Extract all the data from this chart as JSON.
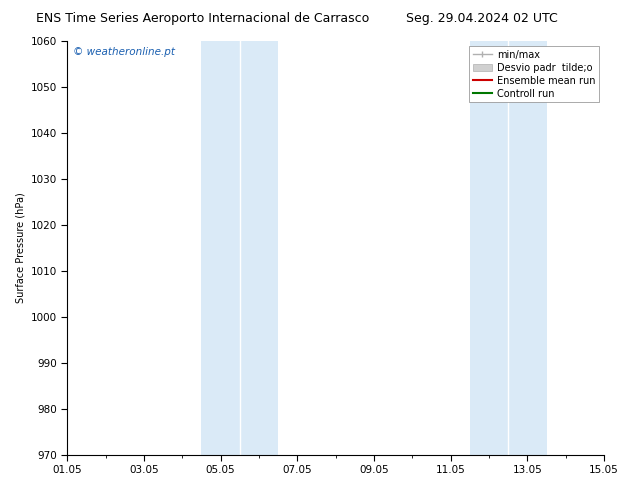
{
  "title_left": "ENS Time Series Aeroporto Internacional de Carrasco",
  "title_right": "Seg. 29.04.2024 02 UTC",
  "ylabel": "Surface Pressure (hPa)",
  "ylim": [
    970,
    1060
  ],
  "yticks": [
    970,
    980,
    990,
    1000,
    1010,
    1020,
    1030,
    1040,
    1050,
    1060
  ],
  "xlim": [
    0,
    14
  ],
  "xtick_labels": [
    "01.05",
    "03.05",
    "05.05",
    "07.05",
    "09.05",
    "11.05",
    "13.05",
    "15.05"
  ],
  "xtick_positions": [
    0,
    2,
    4,
    6,
    8,
    10,
    12,
    14
  ],
  "shaded_bands": [
    {
      "x_start": 3.5,
      "x_end": 4.5
    },
    {
      "x_start": 4.5,
      "x_end": 5.5
    },
    {
      "x_start": 10.5,
      "x_end": 11.5
    },
    {
      "x_start": 11.5,
      "x_end": 12.5
    }
  ],
  "shaded_color": "#daeaf7",
  "watermark_text": "© weatheronline.pt",
  "watermark_color": "#1a5fb0",
  "bg_color": "#ffffff",
  "title_fontsize": 9,
  "axis_label_fontsize": 7,
  "tick_fontsize": 7.5,
  "legend_fontsize": 7
}
